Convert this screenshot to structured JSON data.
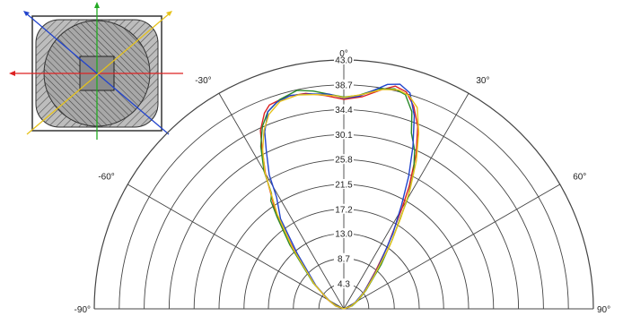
{
  "chart_data": {
    "type": "polar-line",
    "angle_labels": [
      {
        "angle": 0,
        "label": "0°"
      },
      {
        "angle": -30,
        "label": "-30°"
      },
      {
        "angle": 30,
        "label": "30°"
      },
      {
        "angle": -60,
        "label": "-60°"
      },
      {
        "angle": 60,
        "label": "60°"
      },
      {
        "angle": -90,
        "label": "-90°"
      },
      {
        "angle": 90,
        "label": "90°"
      }
    ],
    "radial_ticks": [
      {
        "value": 4.3,
        "label": "4.3"
      },
      {
        "value": 8.7,
        "label": "8.7"
      },
      {
        "value": 13.0,
        "label": "13.0"
      },
      {
        "value": 17.2,
        "label": "17.2"
      },
      {
        "value": 21.5,
        "label": "21.5"
      },
      {
        "value": 25.8,
        "label": "25.8"
      },
      {
        "value": 30.1,
        "label": "30.1"
      },
      {
        "value": 34.4,
        "label": "34.4"
      },
      {
        "value": 38.7,
        "label": "38.7"
      },
      {
        "value": 43.0,
        "label": "43.0"
      }
    ],
    "rlim": [
      0,
      43.0
    ],
    "series": [
      {
        "color": "#dd2222",
        "points": [
          [
            -90,
            0
          ],
          [
            -70,
            1.5
          ],
          [
            -60,
            3.2
          ],
          [
            -50,
            6.5
          ],
          [
            -40,
            13.5
          ],
          [
            -35,
            20.5
          ],
          [
            -30,
            27.0
          ],
          [
            -27,
            31.0
          ],
          [
            -25,
            34.0
          ],
          [
            -22,
            36.5
          ],
          [
            -20,
            37.5
          ],
          [
            -15,
            38.0
          ],
          [
            -10,
            37.8
          ],
          [
            -5,
            37.0
          ],
          [
            0,
            36.2
          ],
          [
            5,
            36.8
          ],
          [
            10,
            38.5
          ],
          [
            13,
            39.5
          ],
          [
            16,
            39.0
          ],
          [
            19,
            37.0
          ],
          [
            22,
            34.0
          ],
          [
            25,
            29.5
          ],
          [
            28,
            24.0
          ],
          [
            30,
            20.0
          ],
          [
            35,
            13.0
          ],
          [
            40,
            8.5
          ],
          [
            50,
            4.5
          ],
          [
            60,
            2.5
          ],
          [
            70,
            1.2
          ],
          [
            90,
            0
          ]
        ]
      },
      {
        "color": "#2a8a2a",
        "points": [
          [
            -90,
            0
          ],
          [
            -70,
            1.5
          ],
          [
            -60,
            3.0
          ],
          [
            -50,
            6.8
          ],
          [
            -40,
            14.5
          ],
          [
            -36,
            19.5
          ],
          [
            -34,
            22.5
          ],
          [
            -32,
            23.5
          ],
          [
            -30,
            27.5
          ],
          [
            -27,
            31.5
          ],
          [
            -24,
            34.5
          ],
          [
            -21,
            36.5
          ],
          [
            -17,
            37.8
          ],
          [
            -12,
            38.6
          ],
          [
            -8,
            38.0
          ],
          [
            -3,
            37.0
          ],
          [
            0,
            36.6
          ],
          [
            4,
            37.0
          ],
          [
            9,
            38.5
          ],
          [
            13,
            39.0
          ],
          [
            16,
            38.5
          ],
          [
            19,
            36.0
          ],
          [
            21,
            32.5
          ],
          [
            24,
            30.0
          ],
          [
            27,
            26.5
          ],
          [
            30,
            22.0
          ],
          [
            35,
            14.5
          ],
          [
            40,
            10.0
          ],
          [
            50,
            5.0
          ],
          [
            60,
            2.8
          ],
          [
            70,
            1.5
          ],
          [
            90,
            0
          ]
        ]
      },
      {
        "color": "#2244cc",
        "points": [
          [
            -90,
            0
          ],
          [
            -70,
            1.3
          ],
          [
            -60,
            3.0
          ],
          [
            -50,
            6.3
          ],
          [
            -40,
            12.5
          ],
          [
            -35,
            19.0
          ],
          [
            -31,
            22.5
          ],
          [
            -29,
            26.5
          ],
          [
            -26,
            30.5
          ],
          [
            -24,
            33.5
          ],
          [
            -21,
            36.5
          ],
          [
            -18,
            37.5
          ],
          [
            -14,
            38.0
          ],
          [
            -9,
            37.6
          ],
          [
            -4,
            37.2
          ],
          [
            0,
            36.4
          ],
          [
            4,
            36.8
          ],
          [
            8,
            38.2
          ],
          [
            11,
            39.5
          ],
          [
            14,
            40.0
          ],
          [
            17,
            39.0
          ],
          [
            20,
            35.5
          ],
          [
            23,
            30.5
          ],
          [
            26,
            25.5
          ],
          [
            29,
            20.5
          ],
          [
            33,
            15.5
          ],
          [
            40,
            9.0
          ],
          [
            50,
            4.5
          ],
          [
            60,
            2.3
          ],
          [
            70,
            1.0
          ],
          [
            90,
            0
          ]
        ]
      },
      {
        "color": "#e6c21a",
        "points": [
          [
            -90,
            0
          ],
          [
            -70,
            1.4
          ],
          [
            -60,
            3.1
          ],
          [
            -50,
            6.6
          ],
          [
            -40,
            13.8
          ],
          [
            -35,
            20.0
          ],
          [
            -30,
            27.2
          ],
          [
            -27,
            30.8
          ],
          [
            -24,
            33.8
          ],
          [
            -21,
            36.0
          ],
          [
            -17,
            37.5
          ],
          [
            -12,
            37.8
          ],
          [
            -7,
            37.3
          ],
          [
            -2,
            36.8
          ],
          [
            0,
            36.5
          ],
          [
            5,
            37.2
          ],
          [
            10,
            38.5
          ],
          [
            14,
            39.0
          ],
          [
            17,
            38.5
          ],
          [
            20,
            37.0
          ],
          [
            23,
            33.0
          ],
          [
            26,
            28.5
          ],
          [
            29,
            23.5
          ],
          [
            32,
            18.5
          ],
          [
            36,
            13.5
          ],
          [
            42,
            8.0
          ],
          [
            50,
            4.8
          ],
          [
            60,
            2.6
          ],
          [
            70,
            1.3
          ],
          [
            90,
            0
          ]
        ]
      }
    ]
  },
  "inset": {
    "axis_colors": {
      "horizontal": "#dd2222",
      "vertical": "#22aa22",
      "diag_blue": "#2244cc",
      "diag_yellow": "#e6c21a"
    }
  }
}
